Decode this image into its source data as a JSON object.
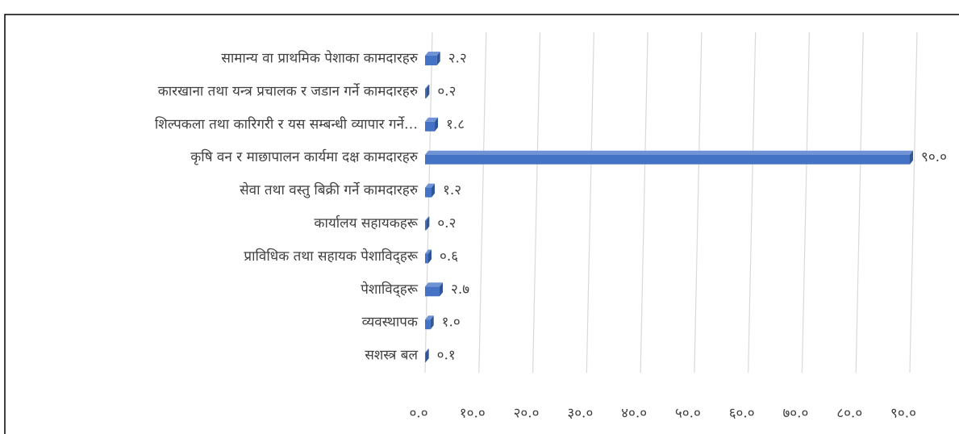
{
  "chart_data": {
    "type": "bar3d-horizontal",
    "categories": [
      "सामान्य वा प्राथमिक पेशाका कामदारहरु",
      "कारखाना तथा यन्त्र प्रचालक र जडान गर्ने कामदारहरु",
      "शिल्पकला तथा कारिगरी र यस सम्बन्धी व्यापार गर्ने…",
      "कृषि वन र माछापालन कार्यमा दक्ष कामदारहरु",
      "सेवा तथा वस्तु बिक्री गर्ने कामदारहरु",
      "कार्यालय सहायकहरू",
      "प्राविधिक तथा सहायक पेशाविद्हरू",
      "पेशाविद्हरू",
      "व्यवस्थापक",
      "सशस्त्र बल"
    ],
    "values": [
      2.2,
      0.2,
      1.8,
      90.0,
      1.2,
      0.2,
      0.6,
      2.7,
      1.0,
      0.1
    ],
    "value_labels": [
      "२.२",
      "०.२",
      "१.८",
      "९०.०",
      "१.२",
      "०.२",
      "०.६",
      "२.७",
      "१.०",
      "०.१"
    ],
    "color": "#4472c4",
    "xlim": [
      0,
      90
    ],
    "xticks": [
      {
        "value": 0,
        "label": "०.०"
      },
      {
        "value": 10,
        "label": "१०.०"
      },
      {
        "value": 20,
        "label": "२०.०"
      },
      {
        "value": 30,
        "label": "३०.०"
      },
      {
        "value": 40,
        "label": "४०.०"
      },
      {
        "value": 50,
        "label": "५०.०"
      },
      {
        "value": 60,
        "label": "६०.०"
      },
      {
        "value": 70,
        "label": "७०.०"
      },
      {
        "value": 80,
        "label": "८०.०"
      },
      {
        "value": 90,
        "label": "९०.०"
      }
    ],
    "grid": true
  }
}
